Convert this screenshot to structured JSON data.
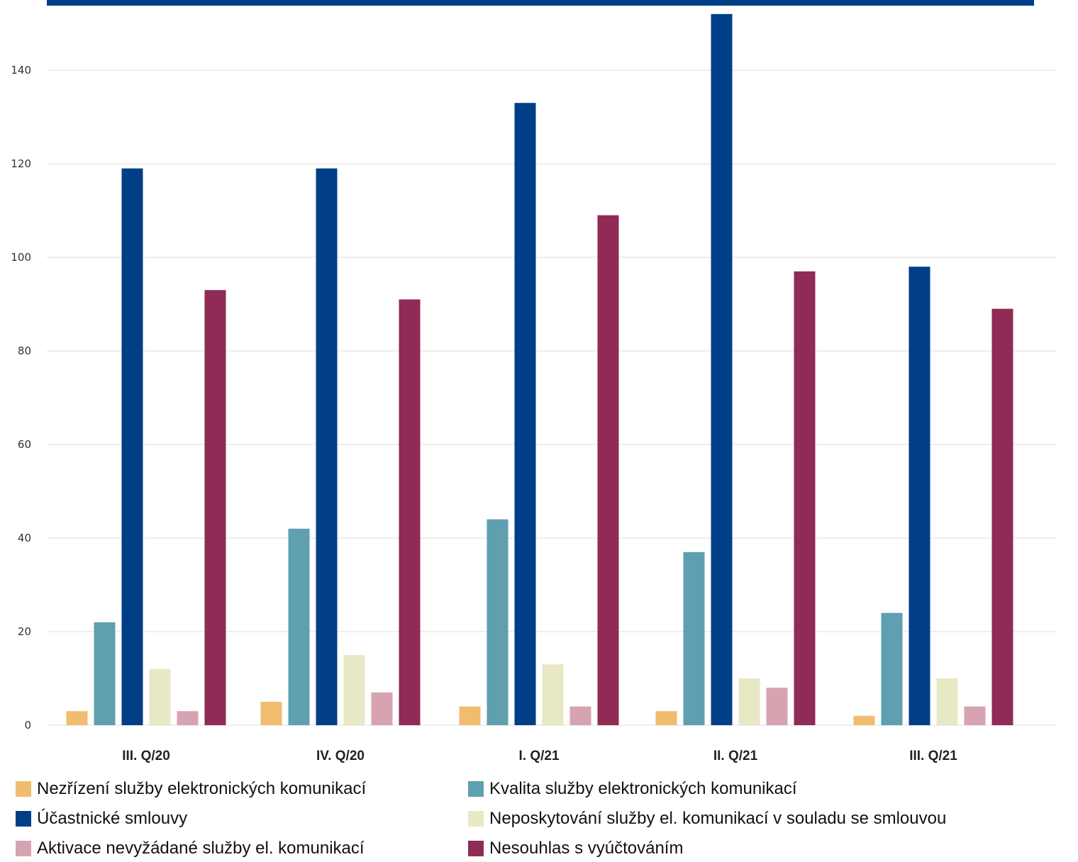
{
  "chart_data": {
    "type": "bar",
    "categories": [
      "III. Q/20",
      "IV. Q/20",
      "I. Q/21",
      "II. Q/21",
      "III. Q/21"
    ],
    "ylim": [
      0,
      152
    ],
    "yticks": [
      0,
      20,
      40,
      60,
      80,
      100,
      120,
      140
    ],
    "grid": true,
    "legend_position": "bottom",
    "series": [
      {
        "name": "Nezřízení služby elektronických komunikací",
        "color": "#f0bd6e",
        "values": [
          3,
          5,
          4,
          3,
          2
        ]
      },
      {
        "name": "Kvalita služby elektronických komunikací",
        "color": "#5e9fb0",
        "values": [
          22,
          42,
          44,
          37,
          24
        ]
      },
      {
        "name": "Účastnické smlouvy",
        "color": "#003f87",
        "values": [
          119,
          119,
          133,
          152,
          98
        ]
      },
      {
        "name": "Neposkytování služby el. komunikací v souladu se smlouvou",
        "color": "#e8e8c4",
        "values": [
          12,
          15,
          13,
          10,
          10
        ]
      },
      {
        "name": "Aktivace nevyžádané služby el. komunikací",
        "color": "#d8a3b1",
        "values": [
          3,
          7,
          4,
          8,
          4
        ]
      },
      {
        "name": "Nesouhlas s vyúčtováním",
        "color": "#8f2b55",
        "values": [
          93,
          91,
          109,
          97,
          89
        ]
      }
    ]
  }
}
